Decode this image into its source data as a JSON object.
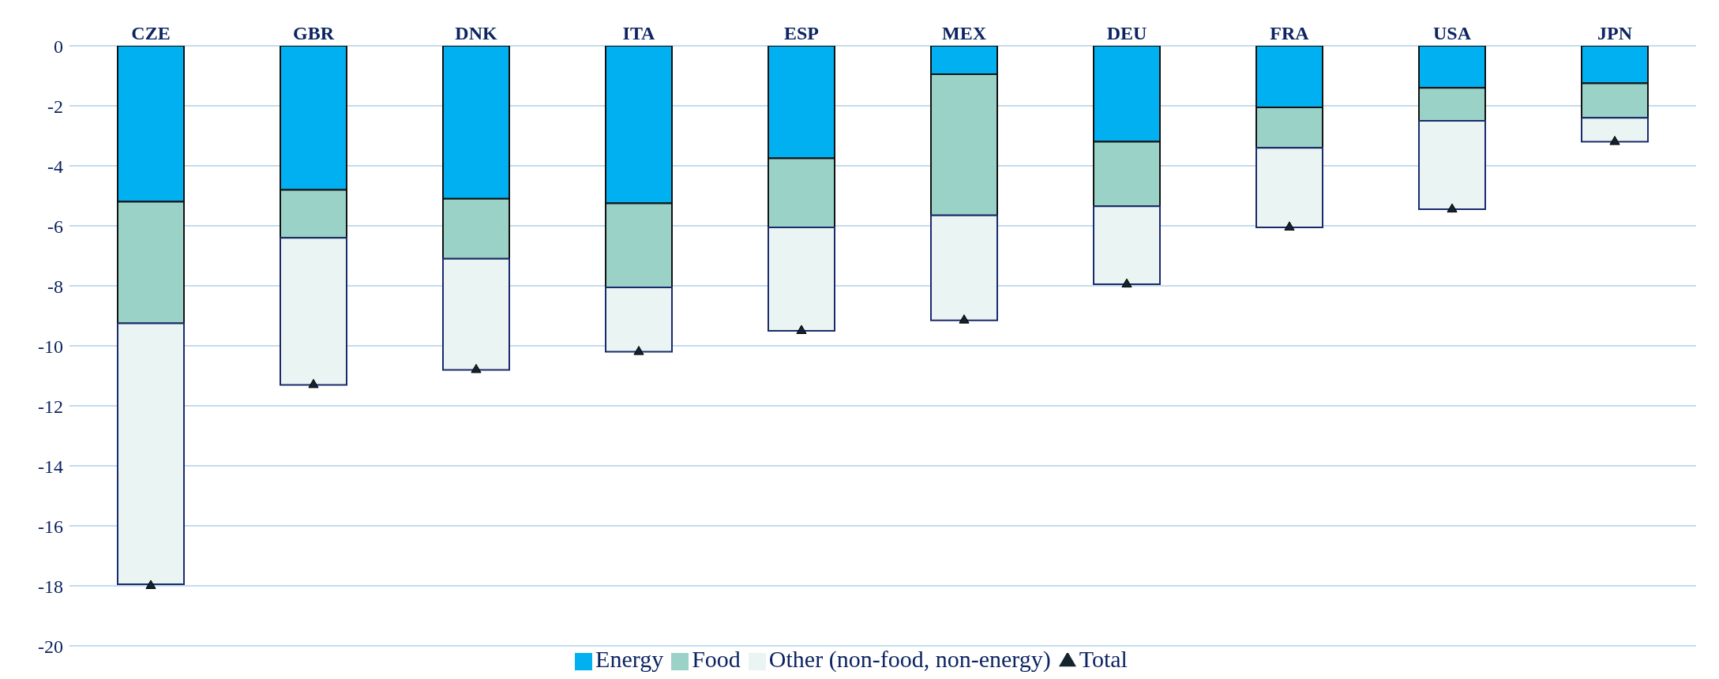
{
  "chart_data": {
    "type": "bar",
    "stacked": true,
    "categories": [
      "CZE",
      "GBR",
      "DNK",
      "ITA",
      "ESP",
      "MEX",
      "DEU",
      "FRA",
      "USA",
      "JPN"
    ],
    "series": [
      {
        "name": "Energy",
        "color": "#00b0f0",
        "values": [
          -5.2,
          -4.8,
          -5.1,
          -5.25,
          -3.75,
          -0.95,
          -3.2,
          -2.05,
          -1.4,
          -1.25
        ]
      },
      {
        "name": "Food",
        "color": "#9ad2c8",
        "values": [
          -4.05,
          -1.6,
          -2.0,
          -2.8,
          -2.3,
          -4.7,
          -2.15,
          -1.35,
          -1.1,
          -1.15
        ]
      },
      {
        "name": "Other (non-food, non-energy)",
        "color": "#eaf4f2",
        "values": [
          -8.7,
          -4.9,
          -3.7,
          -2.15,
          -3.45,
          -3.5,
          -2.6,
          -2.65,
          -2.95,
          -0.8
        ]
      },
      {
        "name": "Total",
        "type": "scatter",
        "marker": "triangle",
        "color": "#13242f",
        "values": [
          -18.0,
          -11.3,
          -10.8,
          -10.2,
          -9.5,
          -9.15,
          -7.95,
          -6.05,
          -5.45,
          -3.2
        ]
      }
    ],
    "ylim": [
      -20,
      0
    ],
    "yticks": [
      -20,
      -18,
      -16,
      -14,
      -12,
      -10,
      -8,
      -6,
      -4,
      -2,
      0
    ],
    "grid": "y",
    "legend": "bottom"
  }
}
